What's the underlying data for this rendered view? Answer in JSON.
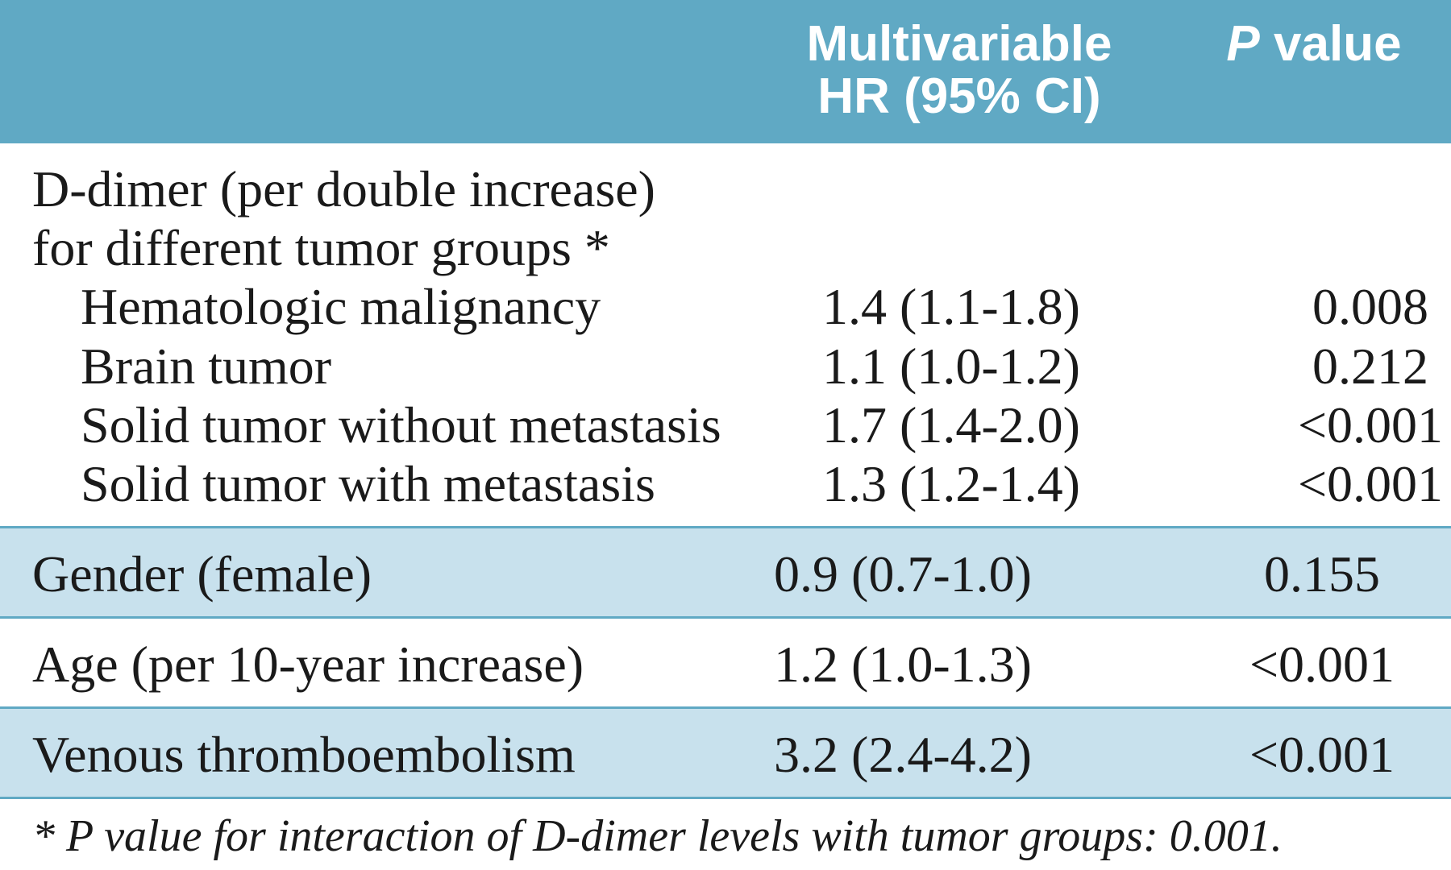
{
  "table": {
    "header_bg": "#60a9c4",
    "header_text_color": "#ffffff",
    "shade_bg": "#c8e1ed",
    "rule_color": "#60a9c4",
    "columns": {
      "label": "",
      "hr": "Multivariable\nHR (95% CI)",
      "hr_line1": "Multivariable",
      "hr_line2": "HR (95% CI)",
      "p_prefix_italic": "P",
      "p_suffix": " value"
    },
    "section_header": {
      "line1": "D-dimer (per double increase)",
      "line2": "for different tumor groups *"
    },
    "subrows": [
      {
        "label": "Hematologic malignancy",
        "hr": "1.4 (1.1-1.8)",
        "p": "0.008"
      },
      {
        "label": "Brain tumor",
        "hr": "1.1 (1.0-1.2)",
        "p": "0.212"
      },
      {
        "label": "Solid tumor without metastasis",
        "hr": "1.7 (1.4-2.0)",
        "p": "<0.001"
      },
      {
        "label": "Solid tumor with metastasis",
        "hr": "1.3 (1.2-1.4)",
        "p": "<0.001"
      }
    ],
    "rows": [
      {
        "label": "Gender (female)",
        "hr": "0.9 (0.7-1.0)",
        "p": "0.155",
        "shaded": true
      },
      {
        "label": "Age (per 10-year increase)",
        "hr": "1.2 (1.0-1.3)",
        "p": "<0.001",
        "shaded": false
      },
      {
        "label": "Venous thromboembolism",
        "hr": "3.2 (2.4-4.2)",
        "p": "<0.001",
        "shaded": true
      }
    ],
    "footnote": "* P value for interaction of D-dimer levels with tumor groups: 0.001."
  }
}
